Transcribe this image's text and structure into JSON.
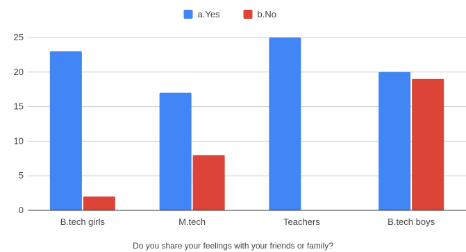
{
  "chart_data": {
    "type": "bar",
    "categories": [
      "B.tech girls",
      "M.tech",
      "Teachers",
      "B.tech boys"
    ],
    "series": [
      {
        "name": "a.Yes",
        "color": "#4285f4",
        "values": [
          23,
          17,
          25,
          20
        ]
      },
      {
        "name": "b.No",
        "color": "#db4437",
        "values": [
          2,
          8,
          0,
          19
        ]
      }
    ],
    "xlabel": "Do you share your feelings with your friends or family?",
    "ylabel": "",
    "ylim": [
      0,
      25
    ],
    "yticks": [
      0,
      5,
      10,
      15,
      20,
      25
    ],
    "grid": true,
    "legend_position": "top-center"
  }
}
